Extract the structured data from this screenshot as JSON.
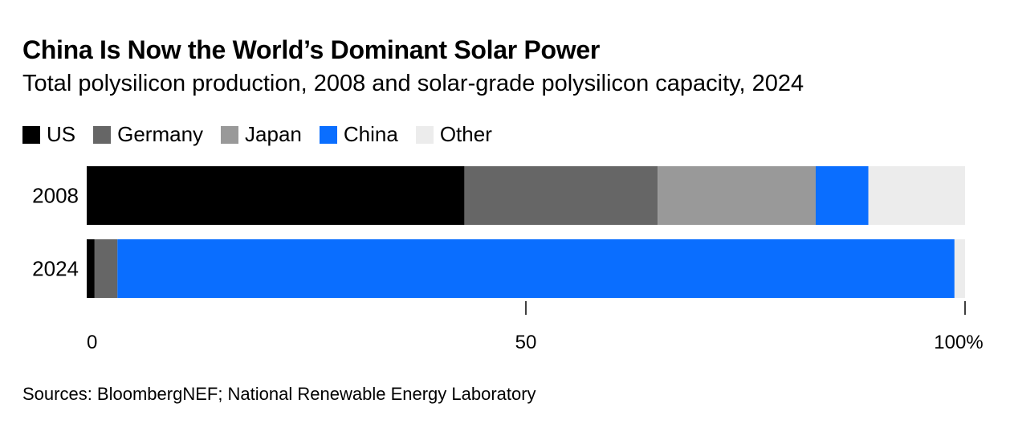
{
  "chart_data": {
    "type": "bar",
    "orientation": "horizontal",
    "stacked": true,
    "title": "China Is Now the World’s Dominant Solar Power",
    "subtitle": "Total polysilicon production, 2008 and solar-grade polysilicon capacity, 2024",
    "categories": [
      "2008",
      "2024"
    ],
    "series": [
      {
        "name": "US",
        "color": "#000000",
        "values": [
          43.0,
          0.9
        ]
      },
      {
        "name": "Germany",
        "color": "#666666",
        "values": [
          22.0,
          2.6
        ]
      },
      {
        "name": "Japan",
        "color": "#999999",
        "values": [
          18.0,
          0.0
        ]
      },
      {
        "name": "China",
        "color": "#0a6eff",
        "values": [
          6.0,
          95.3
        ]
      },
      {
        "name": "Other",
        "color": "#ececec",
        "values": [
          11.0,
          1.2
        ]
      }
    ],
    "xlim": [
      0,
      100
    ],
    "ticks": [
      {
        "value": 0,
        "label": "0"
      },
      {
        "value": 50,
        "label": "50"
      },
      {
        "value": 100,
        "label": "100%"
      }
    ],
    "xlabel": "",
    "ylabel": "",
    "grid": false,
    "legend_position": "top"
  },
  "source": "Sources: BloombergNEF; National Renewable Energy Laboratory"
}
